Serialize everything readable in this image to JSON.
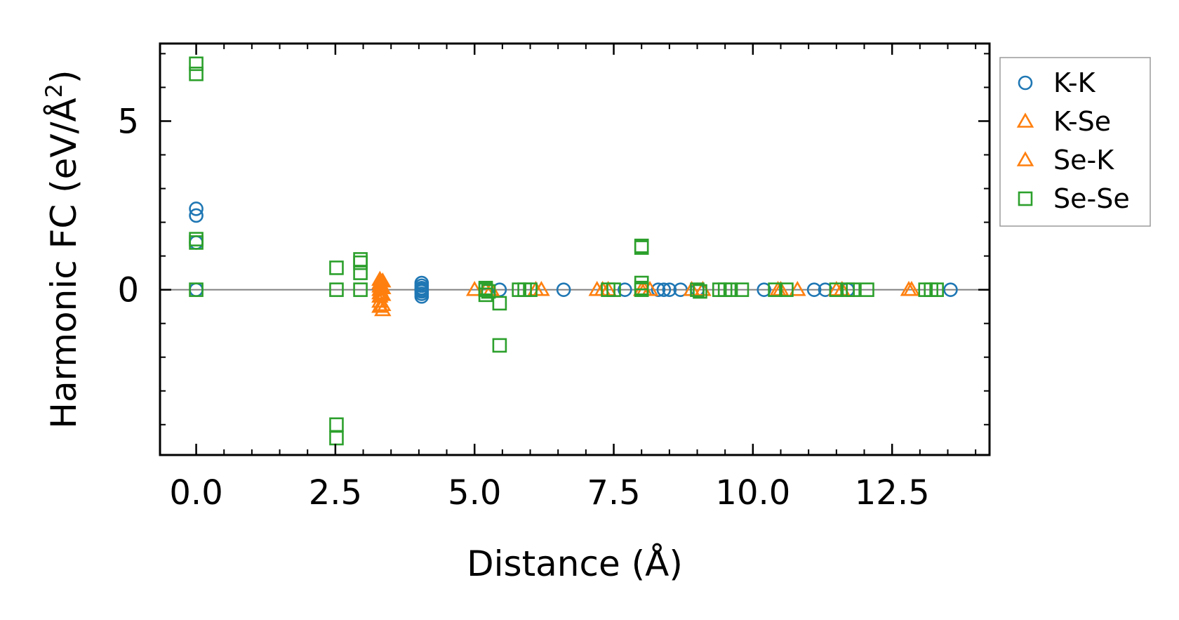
{
  "chart_data": {
    "type": "scatter",
    "xlabel": "Distance (Å)",
    "ylabel_main": "Harmonic FC (eV/Å",
    "ylabel_sup": "2",
    "ylabel_close": ")",
    "xlim": [
      -0.65,
      14.25
    ],
    "ylim": [
      -4.9,
      7.3
    ],
    "x_ticks": [
      0.0,
      2.5,
      5.0,
      7.5,
      10.0,
      12.5
    ],
    "x_tick_labels": [
      "0.0",
      "2.5",
      "5.0",
      "7.5",
      "10.0",
      "12.5"
    ],
    "y_ticks": [
      0,
      5
    ],
    "y_tick_labels": [
      "0",
      "5"
    ],
    "zero_line": true,
    "grid": false,
    "legend_position": "outside-right",
    "series": [
      {
        "name": "K-K",
        "marker": "circle",
        "color": "#1f77b4",
        "points": [
          [
            0,
            2.4
          ],
          [
            0,
            2.2
          ],
          [
            0,
            1.4
          ],
          [
            0,
            0
          ],
          [
            4.05,
            0.2
          ],
          [
            4.05,
            0.12
          ],
          [
            4.05,
            0.05
          ],
          [
            4.05,
            0
          ],
          [
            4.05,
            -0.05
          ],
          [
            4.05,
            -0.12
          ],
          [
            4.05,
            -0.2
          ],
          [
            5.45,
            0
          ],
          [
            6.6,
            0
          ],
          [
            7.7,
            0
          ],
          [
            8.3,
            0
          ],
          [
            8.4,
            0
          ],
          [
            8.5,
            0
          ],
          [
            8.7,
            0
          ],
          [
            9.0,
            0
          ],
          [
            10.2,
            0
          ],
          [
            11.1,
            0
          ],
          [
            11.3,
            0
          ],
          [
            11.7,
            0
          ],
          [
            13.55,
            0
          ]
        ]
      },
      {
        "name": "K-Se",
        "marker": "triangle",
        "color": "#ff7f0e",
        "points": [
          [
            3.3,
            0.3
          ],
          [
            3.3,
            0.2
          ],
          [
            3.3,
            0.1
          ],
          [
            3.3,
            0
          ],
          [
            3.3,
            -0.1
          ],
          [
            3.3,
            -0.2
          ],
          [
            3.3,
            -0.35
          ],
          [
            3.3,
            -0.5
          ],
          [
            5.0,
            0
          ],
          [
            5.3,
            0
          ],
          [
            6.2,
            0
          ],
          [
            7.2,
            0
          ],
          [
            7.4,
            0
          ],
          [
            8.0,
            0
          ],
          [
            8.15,
            0
          ],
          [
            8.9,
            0
          ],
          [
            10.5,
            0
          ],
          [
            10.8,
            0
          ],
          [
            11.5,
            0
          ],
          [
            12.85,
            0
          ]
        ]
      },
      {
        "name": "Se-K",
        "marker": "triangle",
        "color": "#ff7f0e",
        "points": [
          [
            3.35,
            0.25
          ],
          [
            3.35,
            0.05
          ],
          [
            3.35,
            -0.15
          ],
          [
            3.35,
            -0.45
          ],
          [
            3.35,
            -0.6
          ],
          [
            5.2,
            0
          ],
          [
            6.1,
            0
          ],
          [
            7.3,
            0
          ],
          [
            8.05,
            0
          ],
          [
            9.1,
            0
          ],
          [
            10.45,
            0
          ],
          [
            11.6,
            0
          ],
          [
            12.8,
            0
          ]
        ]
      },
      {
        "name": "Se-Se",
        "marker": "square",
        "color": "#2ca02c",
        "points": [
          [
            0,
            6.7
          ],
          [
            0,
            6.4
          ],
          [
            0,
            1.5
          ],
          [
            0,
            1.4
          ],
          [
            0,
            0
          ],
          [
            2.52,
            0.65
          ],
          [
            2.52,
            0
          ],
          [
            2.52,
            -4.0
          ],
          [
            2.52,
            -4.4
          ],
          [
            2.95,
            0.9
          ],
          [
            2.95,
            0.8
          ],
          [
            2.95,
            0.5
          ],
          [
            2.95,
            0
          ],
          [
            5.2,
            0.05
          ],
          [
            5.2,
            0
          ],
          [
            5.25,
            -0.05
          ],
          [
            5.2,
            -0.15
          ],
          [
            5.45,
            -0.4
          ],
          [
            5.45,
            -1.65
          ],
          [
            5.8,
            0
          ],
          [
            5.9,
            0
          ],
          [
            6.0,
            0
          ],
          [
            7.4,
            0
          ],
          [
            7.5,
            0
          ],
          [
            8.0,
            1.3
          ],
          [
            8.0,
            1.25
          ],
          [
            8.0,
            0.2
          ],
          [
            8.0,
            0.05
          ],
          [
            8.0,
            0
          ],
          [
            9.0,
            0
          ],
          [
            9.05,
            -0.05
          ],
          [
            9.4,
            0
          ],
          [
            9.5,
            0
          ],
          [
            9.6,
            0
          ],
          [
            9.8,
            0
          ],
          [
            10.4,
            0
          ],
          [
            10.6,
            0
          ],
          [
            11.5,
            0
          ],
          [
            11.7,
            0
          ],
          [
            11.8,
            0
          ],
          [
            12.05,
            0
          ],
          [
            13.1,
            0
          ],
          [
            13.2,
            0
          ],
          [
            13.3,
            0
          ]
        ]
      }
    ]
  }
}
